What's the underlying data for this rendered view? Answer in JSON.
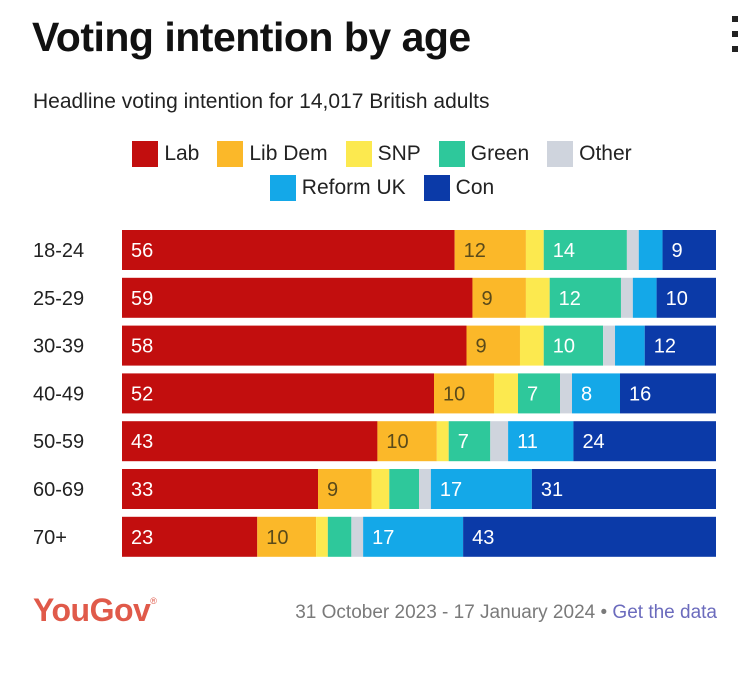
{
  "header": {
    "title": "Voting intention by age",
    "subtitle": "Headline voting intention for 14,017 British adults",
    "menu_icon": "vertical-dots-icon"
  },
  "footer": {
    "brand": "YouGov",
    "brand_mark": "®",
    "date_range": "31 October 2023 - 17 January 2024",
    "separator": "•",
    "link_label": "Get the data"
  },
  "colors": {
    "Lab": "#c20e0e",
    "Lib Dem": "#fbb829",
    "SNP": "#fce94f",
    "Green": "#2ec89b",
    "Other": "#cfd4dd",
    "Reform UK": "#14a8e8",
    "Con": "#0b3aa8"
  },
  "chart_data": {
    "type": "bar",
    "orientation": "horizontal",
    "stacked": true,
    "title": "Voting intention by age",
    "subtitle": "Headline voting intention for 14,017 British adults",
    "legend_position": "top",
    "grid": false,
    "legend": [
      "Lab",
      "Lib Dem",
      "SNP",
      "Green",
      "Other",
      "Reform UK",
      "Con"
    ],
    "categories": [
      "18-24",
      "25-29",
      "30-39",
      "40-49",
      "50-59",
      "60-69",
      "70+"
    ],
    "series": [
      {
        "name": "Lab",
        "values": [
          56,
          59,
          58,
          52,
          43,
          33,
          23
        ]
      },
      {
        "name": "Lib Dem",
        "values": [
          12,
          9,
          9,
          10,
          10,
          9,
          10
        ]
      },
      {
        "name": "SNP",
        "values": [
          3,
          4,
          4,
          4,
          2,
          3,
          2
        ]
      },
      {
        "name": "Green",
        "values": [
          14,
          12,
          10,
          7,
          7,
          5,
          4
        ]
      },
      {
        "name": "Other",
        "values": [
          2,
          2,
          2,
          2,
          3,
          2,
          2
        ]
      },
      {
        "name": "Reform UK",
        "values": [
          4,
          4,
          5,
          8,
          11,
          17,
          17
        ]
      },
      {
        "name": "Con",
        "values": [
          9,
          10,
          12,
          16,
          24,
          31,
          43
        ]
      }
    ],
    "labeled_min": 7
  }
}
